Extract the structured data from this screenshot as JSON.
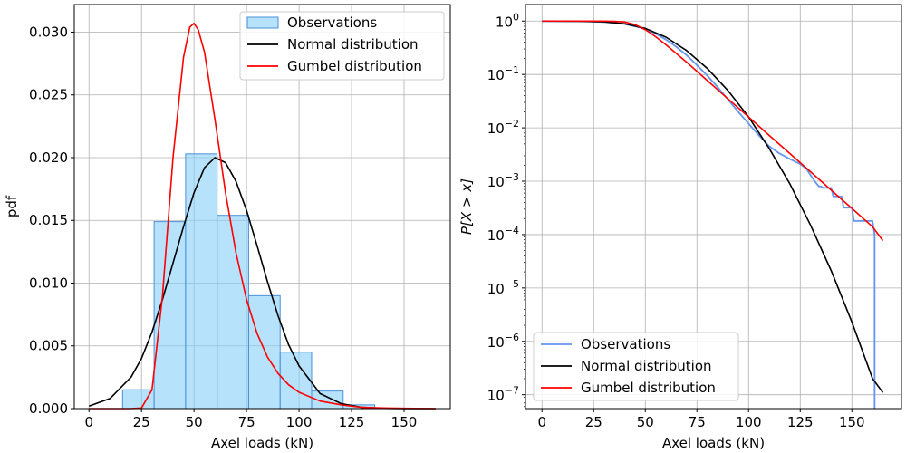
{
  "chart_data": [
    {
      "type": "bar",
      "xlabel": "Axel loads (kN)",
      "ylabel": "pdf",
      "xlim": [
        -7,
        172
      ],
      "ylim": [
        0,
        0.0322
      ],
      "xticks": [
        0,
        25,
        50,
        75,
        100,
        125,
        150
      ],
      "yticks": [
        0.0,
        0.005,
        0.01,
        0.015,
        0.02,
        0.025,
        0.03
      ],
      "ytick_labels": [
        "0.000",
        "0.005",
        "0.010",
        "0.015",
        "0.020",
        "0.025",
        "0.030"
      ],
      "grid": true,
      "legend_position": "top-right",
      "histogram": {
        "name": "Observations",
        "color": "#87cefa",
        "edge_color": "#4a90d9",
        "bins": [
          {
            "x0": 16,
            "x1": 31,
            "value": 0.0015
          },
          {
            "x0": 31,
            "x1": 46,
            "value": 0.0149
          },
          {
            "x0": 46,
            "x1": 61,
            "value": 0.0203
          },
          {
            "x0": 61,
            "x1": 76,
            "value": 0.0154
          },
          {
            "x0": 76,
            "x1": 91,
            "value": 0.009
          },
          {
            "x0": 91,
            "x1": 106,
            "value": 0.0045
          },
          {
            "x0": 106,
            "x1": 121,
            "value": 0.0014
          },
          {
            "x0": 121,
            "x1": 136,
            "value": 0.0003
          }
        ]
      },
      "series": [
        {
          "name": "Normal distribution",
          "color": "#000000",
          "x": [
            0,
            10,
            20,
            25,
            30,
            35,
            40,
            45,
            50,
            55,
            60,
            65,
            70,
            75,
            80,
            85,
            90,
            95,
            100,
            110,
            120,
            130,
            140,
            150,
            165
          ],
          "y": [
            0.0002,
            0.0008,
            0.0025,
            0.004,
            0.0061,
            0.0087,
            0.0116,
            0.0145,
            0.0172,
            0.0192,
            0.02,
            0.0196,
            0.0181,
            0.0158,
            0.013,
            0.0101,
            0.0074,
            0.0051,
            0.0034,
            0.0012,
            0.0004,
            0.0001,
            2e-05,
            0.0,
            0.0
          ]
        },
        {
          "name": "Gumbel distribution",
          "color": "#ff0000",
          "x": [
            0,
            20,
            25,
            30,
            35,
            40,
            45,
            48,
            50,
            52,
            55,
            60,
            65,
            70,
            75,
            80,
            85,
            90,
            95,
            100,
            110,
            120,
            130,
            140,
            150,
            165
          ],
          "y": [
            0.0,
            0.0,
            5e-05,
            0.0015,
            0.009,
            0.02,
            0.028,
            0.0304,
            0.0307,
            0.0302,
            0.0284,
            0.023,
            0.0172,
            0.0124,
            0.0087,
            0.006,
            0.0041,
            0.0028,
            0.0019,
            0.0013,
            0.0006,
            0.0003,
            0.0001,
            5e-05,
            2e-05,
            0.0
          ]
        }
      ],
      "legend": [
        "Observations",
        "Normal distribution",
        "Gumbel distribution"
      ]
    },
    {
      "type": "line",
      "xlabel": "Axel loads (kN)",
      "ylabel": "P[X > x]",
      "yscale": "log",
      "xlim": [
        -8,
        174
      ],
      "ylim_log10": [
        -7.26,
        0.31
      ],
      "xticks": [
        0,
        25,
        50,
        75,
        100,
        125,
        150
      ],
      "ytick_exponents": [
        -7,
        -6,
        -5,
        -4,
        -3,
        -2,
        -1,
        0
      ],
      "grid": true,
      "legend_position": "bottom-left",
      "series": [
        {
          "name": "Observations",
          "color": "#6495ed",
          "step": true,
          "x": [
            0,
            20,
            30,
            40,
            45,
            50,
            55,
            60,
            65,
            70,
            75,
            80,
            85,
            90,
            95,
            100,
            105,
            110,
            115,
            120,
            125,
            128,
            130,
            132,
            134,
            135,
            136,
            137,
            140,
            141,
            145,
            146,
            150,
            151,
            160,
            161,
            161
          ],
          "y": [
            1.0,
            0.99,
            0.96,
            0.88,
            0.8,
            0.71,
            0.58,
            0.45,
            0.33,
            0.23,
            0.15,
            0.095,
            0.058,
            0.034,
            0.02,
            0.012,
            0.0072,
            0.0045,
            0.0033,
            0.0026,
            0.0021,
            0.0017,
            0.0013,
            0.001,
            0.0008,
            0.0008,
            0.00075,
            0.00075,
            0.00075,
            0.00052,
            0.00052,
            0.00032,
            0.00032,
            0.00018,
            0.00018,
            0.0001,
            4e-08
          ]
        },
        {
          "name": "Normal distribution",
          "color": "#000000",
          "x": [
            0,
            20,
            30,
            40,
            50,
            60,
            70,
            80,
            90,
            100,
            110,
            120,
            130,
            140,
            150,
            160,
            165
          ],
          "y": [
            0.999,
            0.99,
            0.97,
            0.89,
            0.73,
            0.5,
            0.28,
            0.13,
            0.05,
            0.016,
            0.0041,
            0.00089,
            0.00015,
            2.1e-05,
            2.3e-06,
            2e-07,
            1.1e-07
          ]
        },
        {
          "name": "Gumbel distribution",
          "color": "#ff0000",
          "x": [
            0,
            20,
            30,
            35,
            40,
            45,
            50,
            55,
            60,
            70,
            80,
            90,
            100,
            110,
            120,
            130,
            140,
            150,
            160,
            165
          ],
          "y": [
            1.0,
            1.0,
            0.998,
            0.99,
            0.96,
            0.86,
            0.69,
            0.51,
            0.36,
            0.17,
            0.077,
            0.035,
            0.016,
            0.0072,
            0.0033,
            0.0015,
            0.00068,
            0.00031,
            0.00014,
            7.7e-05
          ]
        }
      ],
      "legend": [
        "Observations",
        "Normal distribution",
        "Gumbel distribution"
      ]
    }
  ]
}
